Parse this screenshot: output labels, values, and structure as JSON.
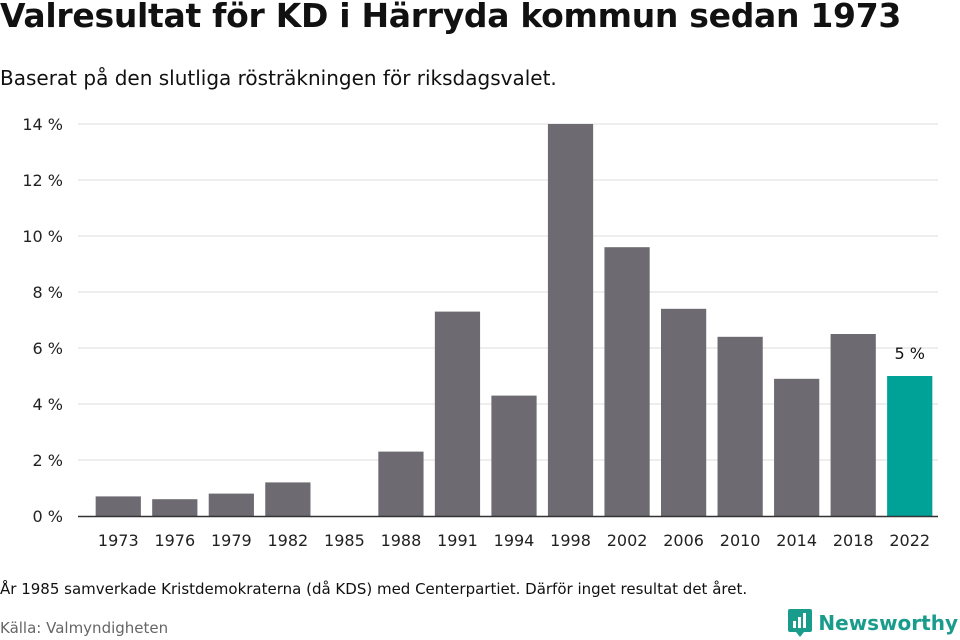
{
  "header": {
    "title": "Valresultat för KD i Härryda kommun sedan 1973",
    "subtitle": "Baserat på den slutliga rösträkningen för riksdagsvalet."
  },
  "footer": {
    "note": "År 1985 samverkade Kristdemokraterna (då KDS) med Centerpartiet. Därför inget resultat det året.",
    "source": "Källa: Valmyndigheten",
    "brand": "Newsworthy",
    "brand_icon": "newsworthy-logo-icon"
  },
  "colors": {
    "bar": "#6d6b71",
    "highlight": "#00a297",
    "grid": "#dddddd",
    "brand": "#1a9c8c"
  },
  "chart_data": {
    "type": "bar",
    "categories": [
      "1973",
      "1976",
      "1979",
      "1982",
      "1985",
      "1988",
      "1991",
      "1994",
      "1998",
      "2002",
      "2006",
      "2010",
      "2014",
      "2018",
      "2022"
    ],
    "values": [
      0.7,
      0.6,
      0.8,
      1.2,
      null,
      2.3,
      7.3,
      4.3,
      14.0,
      9.6,
      7.4,
      6.4,
      4.9,
      6.5,
      5.0
    ],
    "highlight_category": "2022",
    "data_labels": [
      {
        "category": "2022",
        "text": "5 %"
      }
    ],
    "yticks": [
      0,
      2,
      4,
      6,
      8,
      10,
      12,
      14
    ],
    "ytick_suffix": " %",
    "ylim": [
      0,
      14
    ],
    "grid": true,
    "legend": false
  }
}
